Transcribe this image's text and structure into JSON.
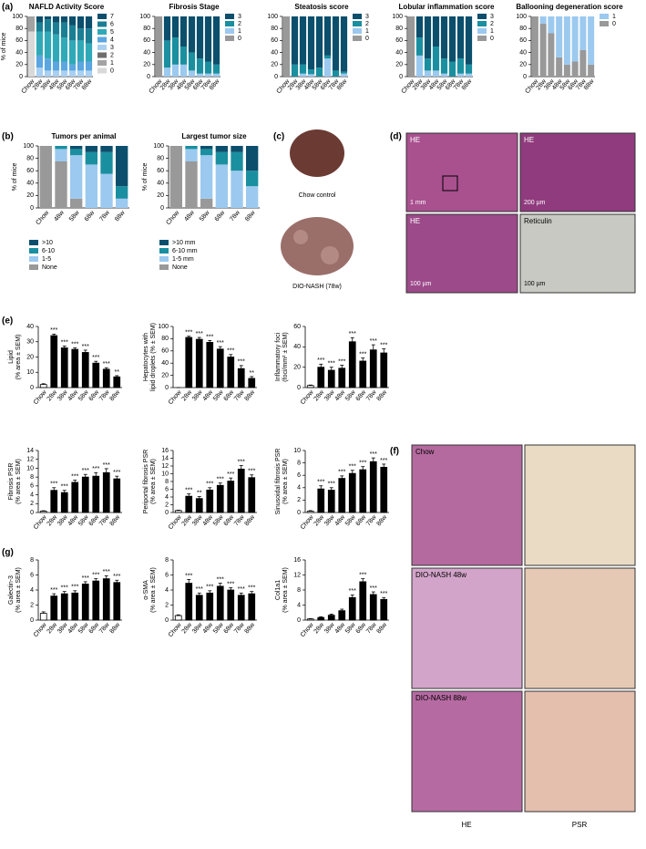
{
  "chart_data": [
    {
      "type": "bar",
      "stacked": true,
      "legend": "right",
      "title": "NAFLD Activity Score",
      "ylabel": [
        "% of mice"
      ],
      "categories": [
        "Chow",
        "28w",
        "38w",
        "48w",
        "58w",
        "68w",
        "78w",
        "88w"
      ],
      "ylim": [
        0,
        100
      ],
      "yticks": [
        0,
        20,
        40,
        60,
        80,
        100
      ],
      "series": [
        {
          "name": "7",
          "color": "#0b4f6c",
          "values": [
            0,
            10,
            5,
            10,
            10,
            15,
            20,
            20
          ]
        },
        {
          "name": "6",
          "color": "#1a7f94",
          "values": [
            0,
            15,
            20,
            20,
            25,
            25,
            20,
            25
          ]
        },
        {
          "name": "5",
          "color": "#2fa9b8",
          "values": [
            0,
            40,
            45,
            45,
            40,
            40,
            35,
            30
          ]
        },
        {
          "name": "4",
          "color": "#5ba6e0",
          "values": [
            0,
            20,
            20,
            15,
            15,
            10,
            15,
            15
          ]
        },
        {
          "name": "3",
          "color": "#a9d0f2",
          "values": [
            0,
            15,
            10,
            10,
            10,
            10,
            10,
            10
          ]
        },
        {
          "name": "2",
          "color": "#6e6e6e",
          "values": [
            0,
            0,
            0,
            0,
            0,
            0,
            0,
            0
          ]
        },
        {
          "name": "1",
          "color": "#a3a3a3",
          "values": [
            25,
            0,
            0,
            0,
            0,
            0,
            0,
            0
          ]
        },
        {
          "name": "0",
          "color": "#d9d9d9",
          "values": [
            75,
            0,
            0,
            0,
            0,
            0,
            0,
            0
          ]
        }
      ]
    },
    {
      "type": "bar",
      "stacked": true,
      "legend": "right",
      "title": "Fibrosis Stage",
      "categories": [
        "Chow",
        "28w",
        "38w",
        "48w",
        "58w",
        "68w",
        "78w",
        "88w"
      ],
      "ylim": [
        0,
        100
      ],
      "yticks": [
        0,
        20,
        40,
        60,
        80,
        100
      ],
      "series": [
        {
          "name": "3",
          "color": "#0b4f6c",
          "values": [
            0,
            40,
            35,
            50,
            60,
            70,
            75,
            80
          ]
        },
        {
          "name": "2",
          "color": "#1a8fa0",
          "values": [
            0,
            45,
            45,
            30,
            30,
            25,
            20,
            15
          ]
        },
        {
          "name": "1",
          "color": "#9cc9ef",
          "values": [
            0,
            15,
            20,
            20,
            10,
            5,
            5,
            5
          ]
        },
        {
          "name": "0",
          "color": "#999999",
          "values": [
            100,
            0,
            0,
            0,
            0,
            0,
            0,
            0
          ]
        }
      ]
    },
    {
      "type": "bar",
      "stacked": true,
      "legend": "right",
      "title": "Steatosis score",
      "categories": [
        "Chow",
        "28w",
        "38w",
        "48w",
        "58w",
        "68w",
        "78w",
        "88w"
      ],
      "ylim": [
        0,
        100
      ],
      "yticks": [
        0,
        20,
        40,
        60,
        80,
        100
      ],
      "series": [
        {
          "name": "3",
          "color": "#0b4f6c",
          "values": [
            0,
            80,
            80,
            88,
            85,
            65,
            90,
            92
          ]
        },
        {
          "name": "2",
          "color": "#1a8fa0",
          "values": [
            0,
            20,
            15,
            8,
            15,
            5,
            10,
            3
          ]
        },
        {
          "name": "1",
          "color": "#9cc9ef",
          "values": [
            0,
            0,
            5,
            4,
            0,
            30,
            0,
            5
          ]
        },
        {
          "name": "0",
          "color": "#999999",
          "values": [
            100,
            0,
            0,
            0,
            0,
            0,
            0,
            0
          ]
        }
      ]
    },
    {
      "type": "bar",
      "stacked": true,
      "legend": "right",
      "title": "Lobular inflammation score",
      "categories": [
        "Chow",
        "28w",
        "38w",
        "48w",
        "58w",
        "68w",
        "78w",
        "88w"
      ],
      "ylim": [
        0,
        100
      ],
      "yticks": [
        0,
        20,
        40,
        60,
        80,
        100
      ],
      "series": [
        {
          "name": "3",
          "color": "#0b4f6c",
          "values": [
            0,
            35,
            70,
            50,
            70,
            75,
            70,
            80
          ]
        },
        {
          "name": "2",
          "color": "#1a8fa0",
          "values": [
            0,
            30,
            20,
            40,
            25,
            25,
            25,
            15
          ]
        },
        {
          "name": "1",
          "color": "#9cc9ef",
          "values": [
            0,
            35,
            10,
            10,
            5,
            0,
            5,
            5
          ]
        },
        {
          "name": "0",
          "color": "#999999",
          "values": [
            100,
            0,
            0,
            0,
            0,
            0,
            0,
            0
          ]
        }
      ]
    },
    {
      "type": "bar",
      "stacked": true,
      "legend": "right",
      "title": "Ballooning degeneration score",
      "categories": [
        "Chow",
        "28w",
        "38w",
        "48w",
        "58w",
        "68w",
        "78w",
        "88w"
      ],
      "ylim": [
        0,
        100
      ],
      "yticks": [
        0,
        20,
        40,
        60,
        80,
        100
      ],
      "series": [
        {
          "name": "1",
          "color": "#9cc9ef",
          "values": [
            0,
            12,
            28,
            68,
            80,
            75,
            56,
            80
          ]
        },
        {
          "name": "0",
          "color": "#999999",
          "values": [
            100,
            88,
            72,
            32,
            20,
            25,
            44,
            20
          ]
        }
      ]
    },
    {
      "type": "bar",
      "stacked": true,
      "legend": "bottom",
      "title": "Tumors per animal",
      "ylabel": [
        "% of mice"
      ],
      "categories": [
        "Chow",
        "48w",
        "58w",
        "68w",
        "78w",
        "88w"
      ],
      "ylim": [
        0,
        100
      ],
      "yticks": [
        0,
        20,
        40,
        60,
        80,
        100
      ],
      "series": [
        {
          "name": ">10",
          "color": "#0b4f6c",
          "values": [
            0,
            0,
            5,
            10,
            10,
            65
          ]
        },
        {
          "name": "6-10",
          "color": "#1a8fa0",
          "values": [
            0,
            5,
            10,
            20,
            35,
            20
          ]
        },
        {
          "name": "1-5",
          "color": "#9cc9ef",
          "values": [
            0,
            20,
            70,
            70,
            55,
            15
          ]
        },
        {
          "name": "None",
          "color": "#999999",
          "values": [
            100,
            75,
            15,
            0,
            0,
            0
          ]
        }
      ]
    },
    {
      "type": "bar",
      "stacked": true,
      "legend": "bottom",
      "title": "Largest tumor size",
      "ylabel": [
        "% of mice"
      ],
      "categories": [
        "Chow",
        "48w",
        "58w",
        "68w",
        "78w",
        "88w"
      ],
      "ylim": [
        0,
        100
      ],
      "yticks": [
        0,
        20,
        40,
        60,
        80,
        100
      ],
      "series": [
        {
          "name": ">10 mm",
          "color": "#0b4f6c",
          "values": [
            0,
            0,
            5,
            10,
            10,
            40
          ]
        },
        {
          "name": "6-10 mm",
          "color": "#1a8fa0",
          "values": [
            0,
            5,
            10,
            20,
            30,
            25
          ]
        },
        {
          "name": "1-5 mm",
          "color": "#9cc9ef",
          "values": [
            0,
            20,
            70,
            70,
            60,
            35
          ]
        },
        {
          "name": "None",
          "color": "#999999",
          "values": [
            100,
            75,
            15,
            0,
            0,
            0
          ]
        }
      ]
    },
    {
      "type": "bar",
      "ylabel": [
        "Lipid",
        "(% area ± SEM)"
      ],
      "color": "#000000",
      "categories": [
        "Chow",
        "28w",
        "38w",
        "48w",
        "58w",
        "68w",
        "78w",
        "88w"
      ],
      "ylim": [
        0,
        40
      ],
      "yticks": [
        0,
        10,
        20,
        30,
        40
      ],
      "values": [
        2,
        34,
        26,
        25,
        23,
        16,
        12,
        7
      ],
      "errors": [
        0.5,
        1,
        1.2,
        1,
        1.5,
        1.2,
        1,
        0.8
      ],
      "annotations": [
        null,
        "***",
        "***",
        "***",
        "***",
        "***",
        "***",
        "**"
      ]
    },
    {
      "type": "bar",
      "ylabel": [
        "Hepatocytes with",
        "lipid droplets (% ± SEM)"
      ],
      "color": "#000000",
      "categories": [
        "Chow",
        "28w",
        "38w",
        "48w",
        "58w",
        "68w",
        "78w",
        "88w"
      ],
      "ylim": [
        0,
        100
      ],
      "yticks": [
        0,
        20,
        40,
        60,
        80,
        100
      ],
      "values": [
        0,
        82,
        79,
        74,
        63,
        50,
        31,
        15
      ],
      "errors": [
        0,
        2,
        3,
        3,
        4,
        4,
        5,
        3
      ],
      "annotations": [
        null,
        "***",
        "***",
        "***",
        "***",
        "***",
        "***",
        "**"
      ]
    },
    {
      "type": "bar",
      "ylabel": [
        "Inflammatory foci",
        "(foci/mm² ± SEM)"
      ],
      "color": "#000000",
      "categories": [
        "Chow",
        "28w",
        "38w",
        "48w",
        "58w",
        "68w",
        "78w",
        "88w"
      ],
      "ylim": [
        0,
        60
      ],
      "yticks": [
        0,
        20,
        40,
        60
      ],
      "values": [
        2,
        20,
        17,
        19,
        45,
        26,
        37,
        34
      ],
      "errors": [
        0.5,
        3,
        3,
        3,
        4,
        3,
        5,
        4
      ],
      "annotations": [
        null,
        "***",
        "***",
        "***",
        "***",
        "***",
        "***",
        "***"
      ]
    },
    {
      "type": "bar",
      "ylabel": [
        "Fibrosis PSR",
        "(% area ± SEM)"
      ],
      "color": "#000000",
      "categories": [
        "Chow",
        "28w",
        "38w",
        "48w",
        "58w",
        "68w",
        "78w",
        "88w"
      ],
      "ylim": [
        0,
        14
      ],
      "yticks": [
        0,
        2,
        4,
        6,
        8,
        10,
        12,
        14
      ],
      "values": [
        0.3,
        5,
        4.5,
        6.8,
        8,
        8.2,
        9,
        7.6
      ],
      "errors": [
        0.1,
        0.6,
        0.5,
        0.5,
        0.6,
        0.8,
        0.9,
        0.6
      ],
      "annotations": [
        null,
        "***",
        "***",
        "***",
        "***",
        "***",
        "***",
        "***"
      ]
    },
    {
      "type": "bar",
      "ylabel": [
        "Periportal fibrosis PSR",
        "(% area ± SEM)"
      ],
      "color": "#000000",
      "categories": [
        "Chow",
        "28w",
        "38w",
        "48w",
        "58w",
        "68w",
        "78w",
        "88w"
      ],
      "ylim": [
        0,
        16
      ],
      "yticks": [
        0,
        2,
        4,
        6,
        8,
        10,
        12,
        14,
        16
      ],
      "values": [
        0.5,
        4.2,
        3.6,
        5.8,
        7,
        8.1,
        11.2,
        9
      ],
      "errors": [
        0.1,
        0.6,
        0.5,
        0.6,
        0.6,
        0.8,
        0.9,
        0.7
      ],
      "annotations": [
        null,
        "***",
        "**",
        "***",
        "***",
        "***",
        "***",
        "***"
      ]
    },
    {
      "type": "bar",
      "ylabel": [
        "Sinusoidal fibrosis PSR",
        "(% area ± SEM)"
      ],
      "color": "#000000",
      "categories": [
        "Chow",
        "28w",
        "38w",
        "48w",
        "58w",
        "68w",
        "78w",
        "88w"
      ],
      "ylim": [
        0,
        10
      ],
      "yticks": [
        0,
        2,
        4,
        6,
        8,
        10
      ],
      "values": [
        0.2,
        3.8,
        3.6,
        5.5,
        6.3,
        6.9,
        8.2,
        7.3
      ],
      "errors": [
        0.1,
        0.5,
        0.4,
        0.4,
        0.5,
        0.5,
        0.6,
        0.5
      ],
      "annotations": [
        null,
        "***",
        "***",
        "***",
        "***",
        "***",
        "***",
        "***"
      ]
    },
    {
      "type": "bar",
      "ylabel": [
        "Galectin-3",
        "(% area ± SEM)"
      ],
      "color": "#000000",
      "categories": [
        "Chow",
        "28w",
        "38w",
        "48w",
        "58w",
        "68w",
        "78w",
        "88w"
      ],
      "ylim": [
        0,
        8
      ],
      "yticks": [
        0,
        2,
        4,
        6,
        8
      ],
      "values": [
        0.9,
        3.2,
        3.5,
        3.6,
        4.8,
        5.2,
        5.5,
        5.0
      ],
      "errors": [
        0.2,
        0.3,
        0.3,
        0.3,
        0.3,
        0.3,
        0.4,
        0.3
      ],
      "annotations": [
        null,
        "***",
        "***",
        "***",
        "***",
        "***",
        "***",
        "***"
      ]
    },
    {
      "type": "bar",
      "ylabel": [
        "α-SMA",
        "(% area ± SEM)"
      ],
      "color": "#000000",
      "categories": [
        "Chow",
        "28w",
        "38w",
        "48w",
        "58w",
        "68w",
        "78w",
        "88w"
      ],
      "ylim": [
        0,
        8
      ],
      "yticks": [
        0,
        2,
        4,
        6,
        8
      ],
      "values": [
        0.6,
        4.9,
        3.3,
        3.6,
        4.5,
        4,
        3.3,
        3.5
      ],
      "errors": [
        0.1,
        0.5,
        0.3,
        0.3,
        0.4,
        0.3,
        0.3,
        0.3
      ],
      "annotations": [
        null,
        "***",
        "***",
        "***",
        "***",
        "***",
        "***",
        "***"
      ]
    },
    {
      "type": "bar",
      "ylabel": [
        "Col1a1",
        "(% area ± SEM)"
      ],
      "color": "#000000",
      "categories": [
        "Chow",
        "28w",
        "38w",
        "48w",
        "58w",
        "68w",
        "78w",
        "88w"
      ],
      "ylim": [
        0,
        16
      ],
      "yticks": [
        0,
        4,
        8,
        12,
        16
      ],
      "values": [
        0.3,
        0.7,
        1.3,
        2.5,
        6,
        10.2,
        6.8,
        5.5
      ],
      "errors": [
        0.1,
        0.2,
        0.3,
        0.4,
        0.7,
        0.8,
        0.7,
        0.5
      ],
      "annotations": [
        null,
        null,
        null,
        null,
        "***",
        "***",
        "***",
        "***"
      ]
    }
  ],
  "panel_labels": [
    "(a)",
    "(b)",
    "(c)",
    "(d)",
    "(e)",
    "(f)",
    "(g)"
  ],
  "liver_photos": {
    "captions": [
      "Chow control",
      "DIO-NASH (78w)"
    ]
  },
  "histology_d": {
    "labels": [
      "HE",
      "HE",
      "HE",
      "Reticulin"
    ],
    "scale_bars": [
      "1 mm",
      "200 µm",
      "100 µm",
      "100 µm"
    ]
  },
  "histology_f": {
    "row_labels": [
      "Chow",
      "DIO-NASH 48w",
      "DIO-NASH 88w"
    ],
    "column_labels": [
      "HE",
      "PSR"
    ]
  }
}
